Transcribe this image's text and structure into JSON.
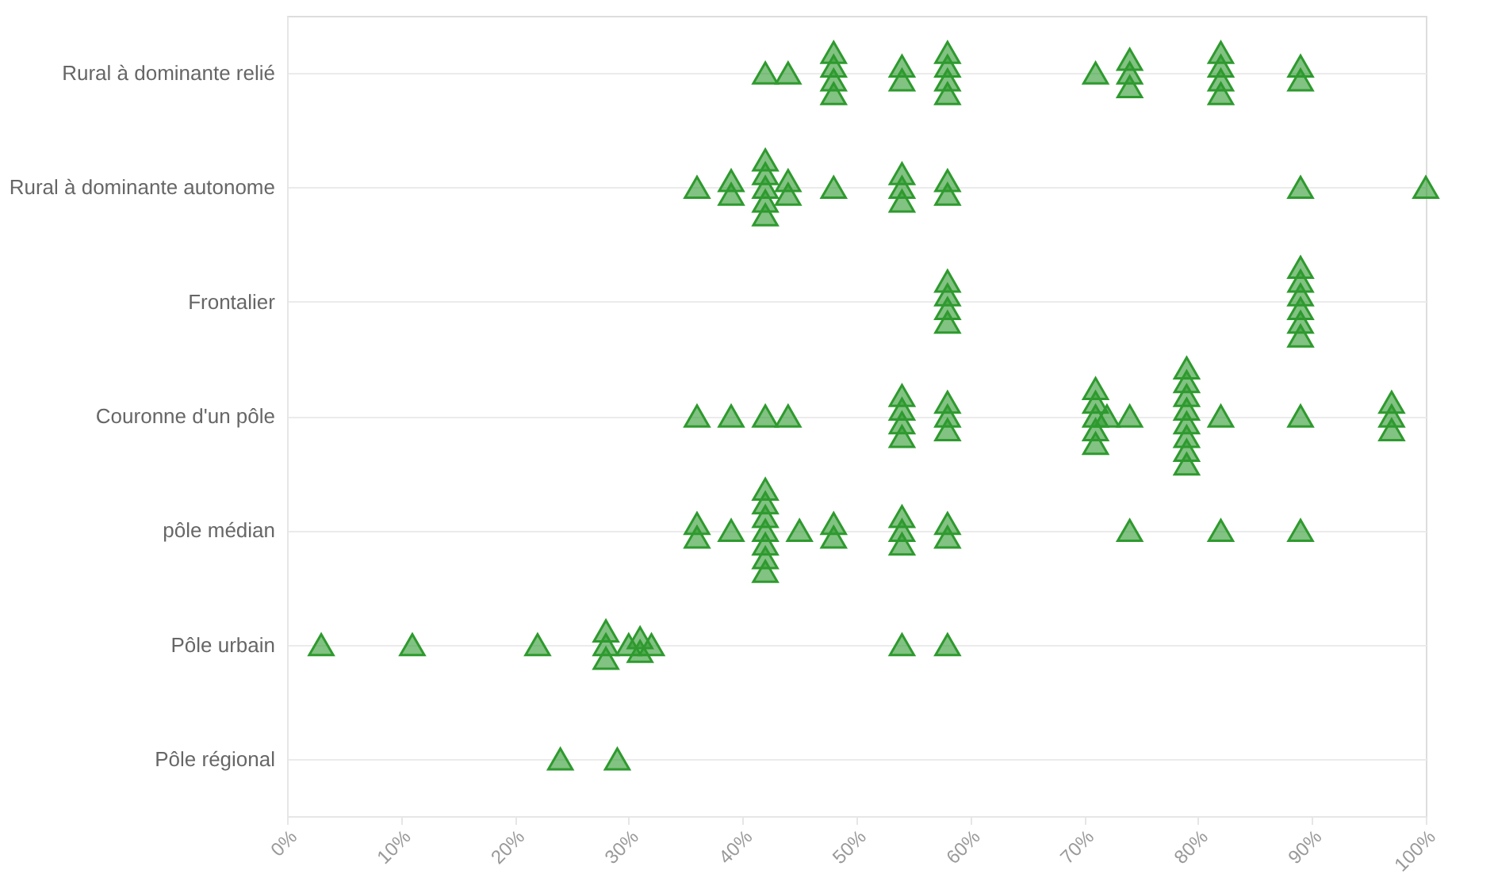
{
  "chart_data": {
    "type": "scatter",
    "orientation": "horizontal",
    "marker": "triangle",
    "grid": "y",
    "legend": false,
    "categories": [
      "Rural à dominante relié",
      "Rural à dominante autonome",
      "Frontalier",
      "Couronne d'un pôle",
      "pôle médian",
      "Pôle urbain",
      "Pôle régional"
    ],
    "xlim": [
      0,
      100
    ],
    "xticks": [
      {
        "value": 0,
        "label": "0%"
      },
      {
        "value": 10,
        "label": "10%"
      },
      {
        "value": 20,
        "label": "20%"
      },
      {
        "value": 30,
        "label": "30%"
      },
      {
        "value": 40,
        "label": "40%"
      },
      {
        "value": 50,
        "label": "50%"
      },
      {
        "value": 60,
        "label": "60%"
      },
      {
        "value": 70,
        "label": "70%"
      },
      {
        "value": 80,
        "label": "80%"
      },
      {
        "value": 90,
        "label": "90%"
      },
      {
        "value": 100,
        "label": "100%"
      }
    ],
    "series": [
      {
        "color": "#2e9a2e",
        "x": [
          "Rural à dominante relié",
          "Rural à dominante relié",
          "Rural à dominante relié",
          "Rural à dominante relié",
          "Rural à dominante relié",
          "Rural à dominante relié",
          "Rural à dominante relié",
          "Rural à dominante relié",
          "Rural à dominante relié",
          "Rural à dominante relié",
          "Rural à dominante relié",
          "Rural à dominante relié",
          "Rural à dominante relié",
          "Rural à dominante relié",
          "Rural à dominante relié",
          "Rural à dominante relié",
          "Rural à dominante relié",
          "Rural à dominante relié",
          "Rural à dominante relié",
          "Rural à dominante relié",
          "Rural à dominante relié",
          "Rural à dominante relié",
          "Rural à dominante autonome",
          "Rural à dominante autonome",
          "Rural à dominante autonome",
          "Rural à dominante autonome",
          "Rural à dominante autonome",
          "Rural à dominante autonome",
          "Rural à dominante autonome",
          "Rural à dominante autonome",
          "Rural à dominante autonome",
          "Rural à dominante autonome",
          "Rural à dominante autonome",
          "Rural à dominante autonome",
          "Rural à dominante autonome",
          "Rural à dominante autonome",
          "Rural à dominante autonome",
          "Rural à dominante autonome",
          "Rural à dominante autonome",
          "Rural à dominante autonome",
          "Frontalier",
          "Frontalier",
          "Frontalier",
          "Frontalier",
          "Frontalier",
          "Frontalier",
          "Frontalier",
          "Frontalier",
          "Frontalier",
          "Frontalier",
          "Couronne d'un pôle",
          "Couronne d'un pôle",
          "Couronne d'un pôle",
          "Couronne d'un pôle",
          "Couronne d'un pôle",
          "Couronne d'un pôle",
          "Couronne d'un pôle",
          "Couronne d'un pôle",
          "Couronne d'un pôle",
          "Couronne d'un pôle",
          "Couronne d'un pôle",
          "Couronne d'un pôle",
          "Couronne d'un pôle",
          "Couronne d'un pôle",
          "Couronne d'un pôle",
          "Couronne d'un pôle",
          "Couronne d'un pôle",
          "Couronne d'un pôle",
          "Couronne d'un pôle",
          "Couronne d'un pôle",
          "Couronne d'un pôle",
          "Couronne d'un pôle",
          "Couronne d'un pôle",
          "Couronne d'un pôle",
          "Couronne d'un pôle",
          "Couronne d'un pôle",
          "Couronne d'un pôle",
          "Couronne d'un pôle",
          "Couronne d'un pôle",
          "Couronne d'un pôle",
          "Couronne d'un pôle",
          "pôle médian",
          "pôle médian",
          "pôle médian",
          "pôle médian",
          "pôle médian",
          "pôle médian",
          "pôle médian",
          "pôle médian",
          "pôle médian",
          "pôle médian",
          "pôle médian",
          "pôle médian",
          "pôle médian",
          "pôle médian",
          "pôle médian",
          "pôle médian",
          "pôle médian",
          "pôle médian",
          "pôle médian",
          "pôle médian",
          "pôle médian",
          "Pôle urbain",
          "Pôle urbain",
          "Pôle urbain",
          "Pôle urbain",
          "Pôle urbain",
          "Pôle urbain",
          "Pôle urbain",
          "Pôle urbain",
          "Pôle urbain",
          "Pôle urbain",
          "Pôle urbain",
          "Pôle urbain",
          "Pôle régional",
          "Pôle régional"
        ],
        "values": [
          42,
          44,
          48,
          48,
          48,
          48,
          54,
          54,
          58,
          58,
          58,
          58,
          71,
          74,
          74,
          74,
          82,
          82,
          82,
          82,
          89,
          89,
          36,
          39,
          39,
          42,
          42,
          42,
          42,
          42,
          44,
          44,
          48,
          54,
          54,
          54,
          58,
          58,
          89,
          100,
          58,
          58,
          58,
          58,
          89,
          89,
          89,
          89,
          89,
          89,
          36,
          39,
          42,
          44,
          54,
          54,
          54,
          54,
          58,
          58,
          58,
          71,
          71,
          71,
          71,
          71,
          72,
          74,
          79,
          79,
          79,
          79,
          79,
          79,
          79,
          79,
          82,
          89,
          97,
          97,
          97,
          36,
          36,
          39,
          42,
          42,
          42,
          42,
          42,
          42,
          42,
          45,
          48,
          48,
          54,
          54,
          54,
          58,
          58,
          74,
          82,
          89,
          3,
          11,
          22,
          28,
          28,
          28,
          30,
          31,
          31,
          32,
          54,
          58,
          24,
          29
        ]
      }
    ]
  }
}
